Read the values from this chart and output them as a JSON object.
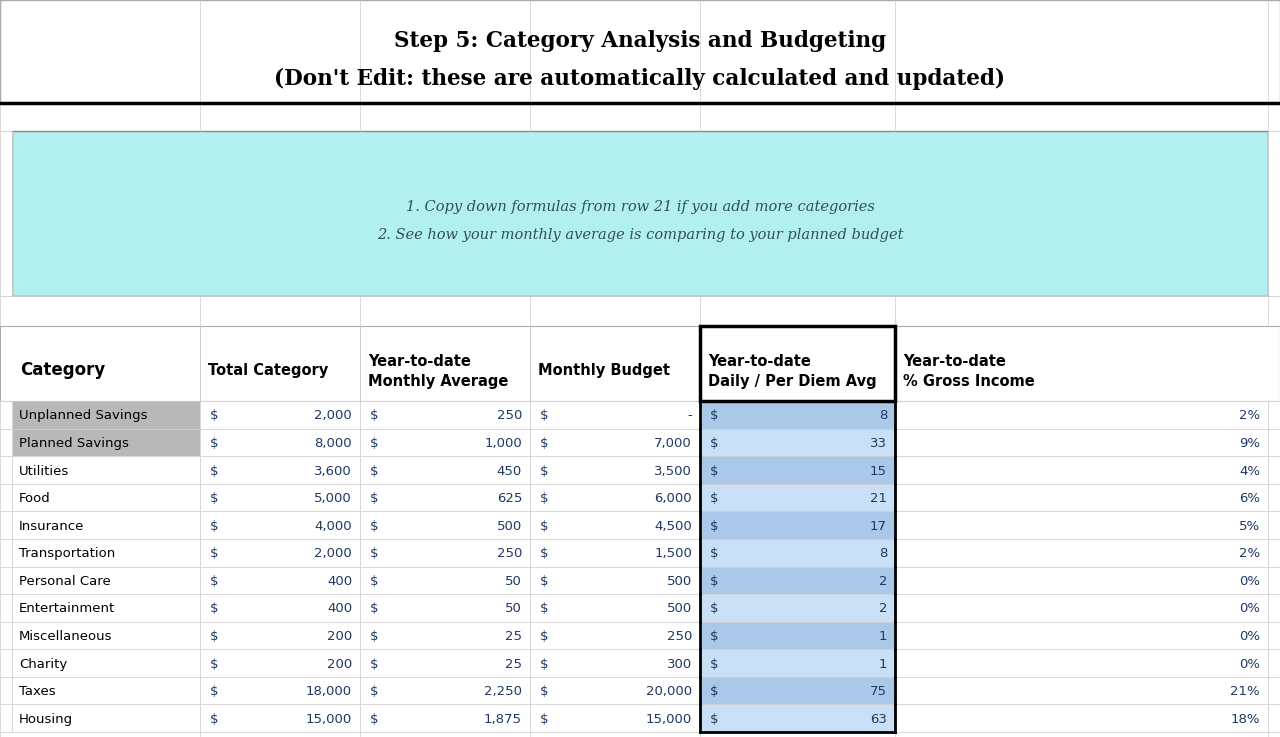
{
  "title_line1": "Step 5: Category Analysis and Budgeting",
  "title_line2": "(Don't Edit: these are automatically calculated and updated)",
  "note_line1": "1. Copy down formulas from row 21 if you add more categories",
  "note_line2": "2. See how your monthly average is comparing to your planned budget",
  "rows": [
    {
      "category": "Unplanned Savings",
      "total": "2,000",
      "monthly_avg": "250",
      "budget": "-",
      "daily_avg": "8",
      "pct": "2%",
      "cat_gray": true
    },
    {
      "category": "Planned Savings",
      "total": "8,000",
      "monthly_avg": "1,000",
      "budget": "7,000",
      "daily_avg": "33",
      "pct": "9%",
      "cat_gray": true
    },
    {
      "category": "Utilities",
      "total": "3,600",
      "monthly_avg": "450",
      "budget": "3,500",
      "daily_avg": "15",
      "pct": "4%",
      "cat_gray": false
    },
    {
      "category": "Food",
      "total": "5,000",
      "monthly_avg": "625",
      "budget": "6,000",
      "daily_avg": "21",
      "pct": "6%",
      "cat_gray": false
    },
    {
      "category": "Insurance",
      "total": "4,000",
      "monthly_avg": "500",
      "budget": "4,500",
      "daily_avg": "17",
      "pct": "5%",
      "cat_gray": false
    },
    {
      "category": "Transportation",
      "total": "2,000",
      "monthly_avg": "250",
      "budget": "1,500",
      "daily_avg": "8",
      "pct": "2%",
      "cat_gray": false
    },
    {
      "category": "Personal Care",
      "total": "400",
      "monthly_avg": "50",
      "budget": "500",
      "daily_avg": "2",
      "pct": "0%",
      "cat_gray": false
    },
    {
      "category": "Entertainment",
      "total": "400",
      "monthly_avg": "50",
      "budget": "500",
      "daily_avg": "2",
      "pct": "0%",
      "cat_gray": false
    },
    {
      "category": "Miscellaneous",
      "total": "200",
      "monthly_avg": "25",
      "budget": "250",
      "daily_avg": "1",
      "pct": "0%",
      "cat_gray": false
    },
    {
      "category": "Charity",
      "total": "200",
      "monthly_avg": "25",
      "budget": "300",
      "daily_avg": "1",
      "pct": "0%",
      "cat_gray": false
    },
    {
      "category": "Taxes",
      "total": "18,000",
      "monthly_avg": "2,250",
      "budget": "20,000",
      "daily_avg": "75",
      "pct": "21%",
      "cat_gray": false
    },
    {
      "category": "Housing",
      "total": "15,000",
      "monthly_avg": "1,875",
      "budget": "15,000",
      "daily_avg": "63",
      "pct": "18%",
      "cat_gray": false
    }
  ],
  "note_bg": "#b2f0f0",
  "cat_gray_bg": "#b8b8b8",
  "daily_col_blue_dark": "#aac8e8",
  "daily_col_blue_light": "#c8dff5",
  "blue_text": "#1f3864",
  "dark_text": "#000000",
  "note_text_color": "#2f5060",
  "grid_light": "#d0d0d0",
  "grid_dark": "#888888"
}
